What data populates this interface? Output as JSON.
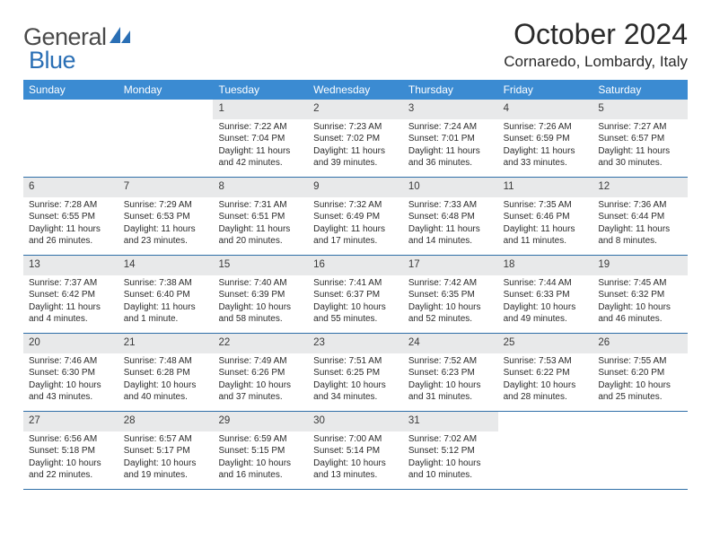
{
  "brand": {
    "name1": "General",
    "name2": "Blue"
  },
  "title": "October 2024",
  "location": "Cornaredo, Lombardy, Italy",
  "colors": {
    "header_bg": "#3b8bd2",
    "row_divider": "#2f6fa8",
    "daynum_bg": "#e8e9ea",
    "text": "#2a2a2a",
    "logo_gray": "#6d6d6d",
    "logo_blue": "#2a6fb5"
  },
  "day_headers": [
    "Sunday",
    "Monday",
    "Tuesday",
    "Wednesday",
    "Thursday",
    "Friday",
    "Saturday"
  ],
  "weeks": [
    [
      null,
      null,
      {
        "n": "1",
        "sr": "7:22 AM",
        "ss": "7:04 PM",
        "dl": "11 hours and 42 minutes."
      },
      {
        "n": "2",
        "sr": "7:23 AM",
        "ss": "7:02 PM",
        "dl": "11 hours and 39 minutes."
      },
      {
        "n": "3",
        "sr": "7:24 AM",
        "ss": "7:01 PM",
        "dl": "11 hours and 36 minutes."
      },
      {
        "n": "4",
        "sr": "7:26 AM",
        "ss": "6:59 PM",
        "dl": "11 hours and 33 minutes."
      },
      {
        "n": "5",
        "sr": "7:27 AM",
        "ss": "6:57 PM",
        "dl": "11 hours and 30 minutes."
      }
    ],
    [
      {
        "n": "6",
        "sr": "7:28 AM",
        "ss": "6:55 PM",
        "dl": "11 hours and 26 minutes."
      },
      {
        "n": "7",
        "sr": "7:29 AM",
        "ss": "6:53 PM",
        "dl": "11 hours and 23 minutes."
      },
      {
        "n": "8",
        "sr": "7:31 AM",
        "ss": "6:51 PM",
        "dl": "11 hours and 20 minutes."
      },
      {
        "n": "9",
        "sr": "7:32 AM",
        "ss": "6:49 PM",
        "dl": "11 hours and 17 minutes."
      },
      {
        "n": "10",
        "sr": "7:33 AM",
        "ss": "6:48 PM",
        "dl": "11 hours and 14 minutes."
      },
      {
        "n": "11",
        "sr": "7:35 AM",
        "ss": "6:46 PM",
        "dl": "11 hours and 11 minutes."
      },
      {
        "n": "12",
        "sr": "7:36 AM",
        "ss": "6:44 PM",
        "dl": "11 hours and 8 minutes."
      }
    ],
    [
      {
        "n": "13",
        "sr": "7:37 AM",
        "ss": "6:42 PM",
        "dl": "11 hours and 4 minutes."
      },
      {
        "n": "14",
        "sr": "7:38 AM",
        "ss": "6:40 PM",
        "dl": "11 hours and 1 minute."
      },
      {
        "n": "15",
        "sr": "7:40 AM",
        "ss": "6:39 PM",
        "dl": "10 hours and 58 minutes."
      },
      {
        "n": "16",
        "sr": "7:41 AM",
        "ss": "6:37 PM",
        "dl": "10 hours and 55 minutes."
      },
      {
        "n": "17",
        "sr": "7:42 AM",
        "ss": "6:35 PM",
        "dl": "10 hours and 52 minutes."
      },
      {
        "n": "18",
        "sr": "7:44 AM",
        "ss": "6:33 PM",
        "dl": "10 hours and 49 minutes."
      },
      {
        "n": "19",
        "sr": "7:45 AM",
        "ss": "6:32 PM",
        "dl": "10 hours and 46 minutes."
      }
    ],
    [
      {
        "n": "20",
        "sr": "7:46 AM",
        "ss": "6:30 PM",
        "dl": "10 hours and 43 minutes."
      },
      {
        "n": "21",
        "sr": "7:48 AM",
        "ss": "6:28 PM",
        "dl": "10 hours and 40 minutes."
      },
      {
        "n": "22",
        "sr": "7:49 AM",
        "ss": "6:26 PM",
        "dl": "10 hours and 37 minutes."
      },
      {
        "n": "23",
        "sr": "7:51 AM",
        "ss": "6:25 PM",
        "dl": "10 hours and 34 minutes."
      },
      {
        "n": "24",
        "sr": "7:52 AM",
        "ss": "6:23 PM",
        "dl": "10 hours and 31 minutes."
      },
      {
        "n": "25",
        "sr": "7:53 AM",
        "ss": "6:22 PM",
        "dl": "10 hours and 28 minutes."
      },
      {
        "n": "26",
        "sr": "7:55 AM",
        "ss": "6:20 PM",
        "dl": "10 hours and 25 minutes."
      }
    ],
    [
      {
        "n": "27",
        "sr": "6:56 AM",
        "ss": "5:18 PM",
        "dl": "10 hours and 22 minutes."
      },
      {
        "n": "28",
        "sr": "6:57 AM",
        "ss": "5:17 PM",
        "dl": "10 hours and 19 minutes."
      },
      {
        "n": "29",
        "sr": "6:59 AM",
        "ss": "5:15 PM",
        "dl": "10 hours and 16 minutes."
      },
      {
        "n": "30",
        "sr": "7:00 AM",
        "ss": "5:14 PM",
        "dl": "10 hours and 13 minutes."
      },
      {
        "n": "31",
        "sr": "7:02 AM",
        "ss": "5:12 PM",
        "dl": "10 hours and 10 minutes."
      },
      null,
      null
    ]
  ],
  "labels": {
    "sunrise": "Sunrise: ",
    "sunset": "Sunset: ",
    "daylight": "Daylight: "
  }
}
